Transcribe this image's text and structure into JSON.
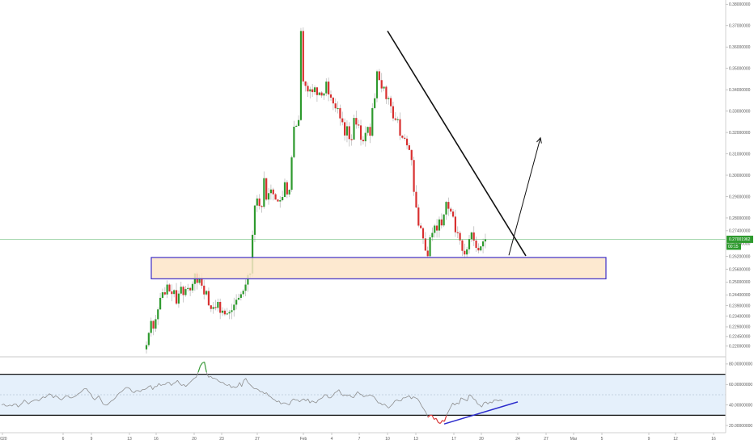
{
  "chart_data": [
    {
      "type": "candlestick",
      "title": "",
      "ylim": [
        0.215,
        0.382
      ],
      "y_ticks": [
        "0.38000000",
        "0.37000000",
        "0.36000000",
        "0.35000000",
        "0.34000000",
        "0.33000000",
        "0.32000000",
        "0.31000000",
        "0.30000000",
        "0.29000000",
        "0.28000000",
        "0.27400000",
        "0.26800000",
        "0.26200000",
        "0.25600000",
        "0.25000000",
        "0.24400000",
        "0.23900000",
        "0.23400000",
        "0.22900000",
        "0.22450000",
        "0.22000000"
      ],
      "y_tick_values": [
        0.38,
        0.37,
        0.36,
        0.35,
        0.34,
        0.33,
        0.32,
        0.31,
        0.3,
        0.29,
        0.28,
        0.274,
        0.268,
        0.262,
        0.256,
        0.25,
        0.244,
        0.239,
        0.234,
        0.229,
        0.2245,
        0.22
      ],
      "x_labels": [
        "2020",
        "6",
        "9",
        "13",
        "16",
        "20",
        "23",
        "27",
        "Feb",
        "4",
        "7",
        "10",
        "13",
        "17",
        "20",
        "24",
        "27",
        "Mar",
        "5",
        "9",
        "12",
        "16"
      ],
      "last_price_label": "0.27001962",
      "last_price_value": 0.27,
      "countdown_label": "00:15",
      "support_zone": [
        0.2515,
        0.2615
      ],
      "trendline": {
        "from": [
          "Feb 10",
          0.3675
        ],
        "to": [
          "Feb 24",
          0.2615
        ]
      },
      "projection_arrow": {
        "from": [
          "Feb 23",
          0.2625
        ],
        "to": [
          "Feb 26",
          0.3175
        ]
      },
      "colors": {
        "up": "#2e9a2e",
        "down": "#d83030",
        "zone_fill": "#fde5c8",
        "zone_border": "#3d2fc8",
        "trendline": "#111111",
        "price_line": "#3aa84a"
      },
      "closes": [
        0.2205,
        0.2262,
        0.2318,
        0.2282,
        0.2326,
        0.2372,
        0.2426,
        0.2452,
        0.2442,
        0.2488,
        0.2456,
        0.2444,
        0.2462,
        0.2399,
        0.2446,
        0.2478,
        0.2439,
        0.2467,
        0.2472,
        0.2461,
        0.2491,
        0.254,
        0.2496,
        0.252,
        0.2483,
        0.2442,
        0.2458,
        0.2391,
        0.2374,
        0.2383,
        0.2379,
        0.2407,
        0.2356,
        0.2366,
        0.2349,
        0.2353,
        0.236,
        0.2368,
        0.2394,
        0.2417,
        0.2426,
        0.2443,
        0.2459,
        0.2488,
        0.2533,
        0.254,
        0.2721,
        0.2858,
        0.2891,
        0.2856,
        0.2852,
        0.2986,
        0.2886,
        0.2916,
        0.2933,
        0.2911,
        0.2886,
        0.2877,
        0.2883,
        0.2898,
        0.2967,
        0.291,
        0.2932,
        0.3084,
        0.3227,
        0.3231,
        0.3258,
        0.3675,
        0.3439,
        0.3418,
        0.3392,
        0.3402,
        0.3389,
        0.3411,
        0.3375,
        0.3387,
        0.3373,
        0.3383,
        0.3438,
        0.3378,
        0.3363,
        0.3336,
        0.3313,
        0.3314,
        0.3266,
        0.3248,
        0.3186,
        0.3229,
        0.3169,
        0.3167,
        0.3268,
        0.3237,
        0.3233,
        0.3166,
        0.3159,
        0.3198,
        0.3226,
        0.3185,
        0.3314,
        0.336,
        0.3486,
        0.3445,
        0.3406,
        0.3414,
        0.3356,
        0.3361,
        0.3323,
        0.3266,
        0.3259,
        0.3262,
        0.3185,
        0.3175,
        0.3171,
        0.314,
        0.3118,
        0.3071,
        0.2922,
        0.2849,
        0.2764,
        0.2752,
        0.2704,
        0.2647,
        0.2621,
        0.2709,
        0.273,
        0.2764,
        0.2741,
        0.2793,
        0.2765,
        0.2816,
        0.2875,
        0.2843,
        0.283,
        0.2806,
        0.2733,
        0.273,
        0.2695,
        0.2646,
        0.2629,
        0.2653,
        0.2701,
        0.2732,
        0.2694,
        0.266,
        0.2648,
        0.2667,
        0.269,
        0.27
      ]
    },
    {
      "type": "line",
      "title": "",
      "ylim": [
        13,
        87
      ],
      "y_ticks": [
        "80.00000000",
        "60.00000000",
        "40.00000000",
        "20.00000000"
      ],
      "y_tick_values": [
        80,
        60,
        40,
        20
      ],
      "bands": [
        70,
        30
      ],
      "midline": 50,
      "divergence_line": {
        "from": [
          "Feb 16",
          21.5
        ],
        "to": [
          "Feb 24",
          43
        ]
      },
      "colors": {
        "line": "#8c8c8c",
        "overbought": "#3a9a3a",
        "oversold": "#d83a3a",
        "band_fill": "#e5f0fb",
        "divergence": "#2a2acc"
      },
      "values": [
        40,
        41,
        39,
        39,
        40,
        39,
        41,
        41,
        38,
        40,
        42,
        45,
        43,
        41,
        43,
        44,
        45,
        45,
        44,
        46,
        48,
        47,
        49,
        51,
        50,
        47,
        49,
        48,
        46,
        45,
        47,
        49,
        49,
        47,
        47,
        48,
        49,
        51,
        52,
        54,
        56,
        56,
        53,
        51,
        47,
        45,
        47,
        49,
        45,
        41,
        40,
        40,
        42,
        44,
        45,
        47,
        50,
        52,
        53,
        55,
        57,
        57,
        56,
        53,
        52,
        54,
        54,
        53,
        55,
        55,
        56,
        58,
        59,
        55,
        58,
        58,
        61,
        59,
        60,
        60,
        62,
        62,
        59,
        61,
        62,
        64,
        61,
        59,
        60,
        58,
        60,
        62,
        64,
        66,
        67,
        72,
        78,
        81,
        82,
        72,
        67,
        68,
        66,
        66,
        65,
        63,
        62,
        62,
        60,
        59,
        60,
        57,
        58,
        57,
        58,
        62,
        58,
        64,
        66,
        62,
        60,
        58,
        56,
        56,
        55,
        53,
        53,
        51,
        52,
        49,
        48,
        46,
        45,
        43,
        44,
        41,
        42,
        42,
        41,
        40,
        44,
        46,
        45,
        45,
        43,
        45,
        46,
        44,
        46,
        42,
        44,
        43,
        42,
        45,
        46,
        47,
        50,
        50,
        47,
        47,
        49,
        52,
        53,
        55,
        51,
        49,
        50,
        49,
        50,
        48,
        47,
        50,
        53,
        51,
        50,
        48,
        49,
        49,
        50,
        49,
        48,
        45,
        42,
        42,
        40,
        41,
        39,
        37,
        39,
        41,
        44,
        45,
        44,
        44,
        47,
        47,
        48,
        49,
        46,
        48,
        47,
        46,
        43,
        39,
        36,
        33,
        28,
        30,
        30,
        26,
        27,
        23,
        22,
        25,
        24,
        30,
        34,
        38,
        42,
        40,
        42,
        41,
        47,
        46,
        45,
        44,
        50,
        49,
        46,
        45,
        41,
        40,
        38,
        42,
        43,
        41,
        43,
        42,
        45,
        45,
        44,
        45,
        44
      ]
    }
  ]
}
